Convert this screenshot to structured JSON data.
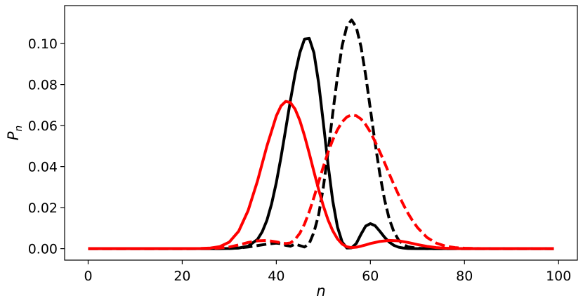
{
  "chart_data": {
    "type": "line",
    "xlabel": "n",
    "ylabel": "P_n",
    "ylabel_main": "P",
    "ylabel_sub": "n",
    "xlim": [
      -5,
      104
    ],
    "ylim": [
      -0.0056,
      0.1185
    ],
    "xticks": [
      0,
      20,
      40,
      60,
      80,
      100
    ],
    "xtick_labels": [
      "0",
      "20",
      "40",
      "60",
      "80",
      "100"
    ],
    "yticks": [
      0.0,
      0.02,
      0.04,
      0.06,
      0.08,
      0.1
    ],
    "ytick_labels": [
      "0.00",
      "0.02",
      "0.04",
      "0.06",
      "0.08",
      "0.10"
    ],
    "grid": false,
    "series": [
      {
        "color": "#000000",
        "style": "solid",
        "x": [
          0,
          20,
          26,
          28,
          30,
          32,
          34,
          36,
          37,
          38,
          39,
          40,
          41,
          42,
          43,
          44,
          45,
          46,
          47,
          48,
          49,
          50,
          51,
          52,
          53,
          54,
          55,
          56,
          57,
          58,
          59,
          60,
          61,
          62,
          63,
          64,
          65,
          66,
          67,
          68,
          70,
          75,
          80,
          99
        ],
        "y": [
          0,
          0,
          0,
          0,
          0.0001,
          0.0003,
          0.0012,
          0.0045,
          0.0082,
          0.0138,
          0.0218,
          0.0322,
          0.0446,
          0.0583,
          0.0723,
          0.0851,
          0.0955,
          0.1022,
          0.1025,
          0.0955,
          0.0808,
          0.0613,
          0.041,
          0.0233,
          0.0106,
          0.0032,
          0.0003,
          0.0004,
          0.0025,
          0.007,
          0.011,
          0.0122,
          0.0112,
          0.0085,
          0.0056,
          0.0032,
          0.0016,
          0.0007,
          0.0003,
          0.0001,
          0,
          0,
          0,
          0
        ]
      },
      {
        "color": "#000000",
        "style": "dashed",
        "x": [
          0,
          20,
          28,
          30,
          32,
          34,
          36,
          38,
          40,
          41,
          42,
          43,
          44,
          45,
          46,
          47,
          48,
          49,
          50,
          51,
          52,
          53,
          54,
          55,
          56,
          57,
          58,
          59,
          60,
          61,
          62,
          63,
          64,
          65,
          66,
          67,
          68,
          70,
          72,
          75,
          80,
          99
        ],
        "y": [
          0,
          0,
          0,
          0.0001,
          0.0003,
          0.0008,
          0.0015,
          0.0022,
          0.0027,
          0.0024,
          0.0016,
          0.0012,
          0.0022,
          0.0015,
          0.0008,
          0.0025,
          0.008,
          0.0165,
          0.03,
          0.047,
          0.066,
          0.084,
          0.099,
          0.1085,
          0.1115,
          0.108,
          0.0985,
          0.0845,
          0.068,
          0.0515,
          0.0365,
          0.024,
          0.0145,
          0.0082,
          0.0042,
          0.002,
          0.0009,
          0.0002,
          0,
          0,
          0,
          0
        ]
      },
      {
        "color": "#ff0000",
        "style": "solid",
        "x": [
          0,
          20,
          24,
          26,
          28,
          30,
          32,
          34,
          36,
          38,
          40,
          41,
          42,
          43,
          44,
          45,
          46,
          47,
          48,
          49,
          50,
          51,
          52,
          53,
          54,
          55,
          56,
          57,
          58,
          59,
          60,
          62,
          64,
          66,
          68,
          70,
          72,
          74,
          76,
          78,
          80,
          99
        ],
        "y": [
          0,
          0,
          0.0001,
          0.0003,
          0.001,
          0.0032,
          0.0085,
          0.0185,
          0.033,
          0.05,
          0.0647,
          0.0696,
          0.0718,
          0.0712,
          0.068,
          0.0625,
          0.055,
          0.0465,
          0.0375,
          0.0288,
          0.0208,
          0.014,
          0.0087,
          0.0048,
          0.0022,
          0.0009,
          0.0005,
          0.0007,
          0.0012,
          0.0018,
          0.0025,
          0.0035,
          0.004,
          0.0038,
          0.003,
          0.002,
          0.0011,
          0.0005,
          0.0002,
          0.0001,
          0,
          0
        ]
      },
      {
        "color": "#ff0000",
        "style": "dashed",
        "x": [
          0,
          20,
          26,
          28,
          30,
          32,
          34,
          36,
          38,
          40,
          42,
          43,
          44,
          45,
          46,
          47,
          48,
          49,
          50,
          51,
          52,
          53,
          54,
          55,
          56,
          57,
          58,
          59,
          60,
          61,
          62,
          63,
          64,
          65,
          66,
          67,
          68,
          69,
          70,
          72,
          74,
          76,
          78,
          80,
          85,
          99
        ],
        "y": [
          0,
          0,
          0.0001,
          0.0003,
          0.0008,
          0.0018,
          0.003,
          0.0038,
          0.004,
          0.0033,
          0.0025,
          0.0028,
          0.0045,
          0.0075,
          0.012,
          0.018,
          0.025,
          0.0325,
          0.04,
          0.047,
          0.053,
          0.058,
          0.0618,
          0.0642,
          0.0652,
          0.0648,
          0.0632,
          0.0605,
          0.0568,
          0.0522,
          0.0472,
          0.042,
          0.0365,
          0.0312,
          0.0262,
          0.0215,
          0.0172,
          0.0135,
          0.0103,
          0.0055,
          0.0027,
          0.0012,
          0.0005,
          0.0002,
          0,
          0
        ]
      }
    ]
  }
}
